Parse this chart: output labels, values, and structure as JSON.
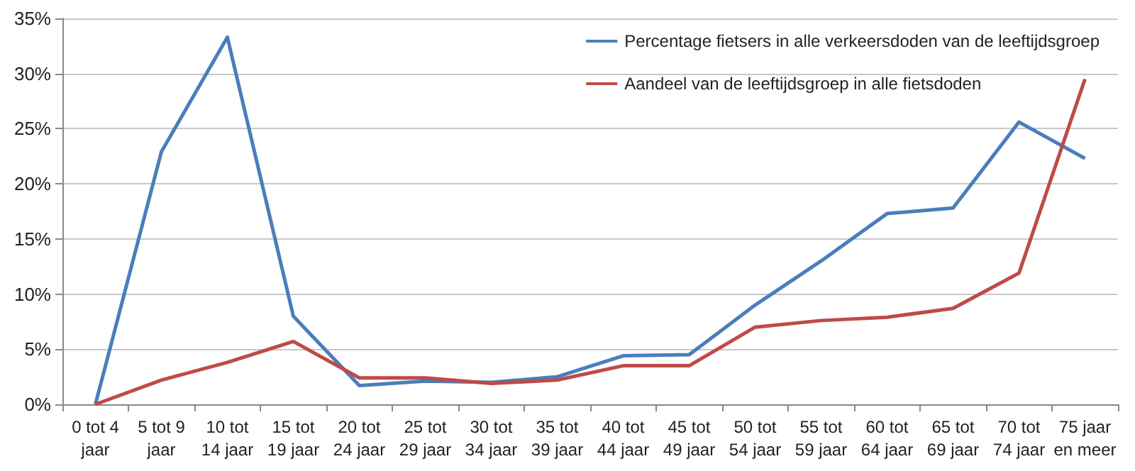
{
  "chart_data": {
    "type": "line",
    "categories": [
      "0 tot 4\njaar",
      "5 tot 9\njaar",
      "10 tot\n14 jaar",
      "15 tot\n19 jaar",
      "20 tot\n24 jaar",
      "25 tot\n29 jaar",
      "30 tot\n34 jaar",
      "35 tot\n39 jaar",
      "40 tot\n44 jaar",
      "45 tot\n49 jaar",
      "50 tot\n54 jaar",
      "55 tot\n59 jaar",
      "60 tot\n64 jaar",
      "65 tot\n69 jaar",
      "70 tot\n74 jaar",
      "75 jaar\nen meer"
    ],
    "series": [
      {
        "name": "Percentage fietsers in alle verkeersdoden van de leeftijdsgroep",
        "color": "#4a7ebb",
        "values": [
          0,
          22.9,
          33.3,
          8.0,
          1.7,
          2.1,
          2.0,
          2.5,
          4.4,
          4.5,
          9.0,
          13.0,
          17.3,
          17.8,
          25.6,
          22.3
        ]
      },
      {
        "name": "Aandeel van de leeftijdsgroep in alle fietsdoden",
        "color": "#be4b48",
        "values": [
          0,
          2.2,
          3.8,
          5.7,
          2.4,
          2.4,
          1.9,
          2.2,
          3.5,
          3.5,
          7.0,
          7.6,
          7.9,
          8.7,
          11.9,
          29.5
        ]
      }
    ],
    "ylim": [
      0,
      35
    ],
    "yticks": [
      {
        "value": 0,
        "label": "0%"
      },
      {
        "value": 5,
        "label": "5%"
      },
      {
        "value": 10,
        "label": "10%"
      },
      {
        "value": 15,
        "label": "15%"
      },
      {
        "value": 20,
        "label": "20%"
      },
      {
        "value": 25,
        "label": "25%"
      },
      {
        "value": 30,
        "label": "30%"
      },
      {
        "value": 35,
        "label": "35%"
      }
    ],
    "grid": "y",
    "legend": "top right",
    "marker": "none",
    "line_style": "solid"
  }
}
